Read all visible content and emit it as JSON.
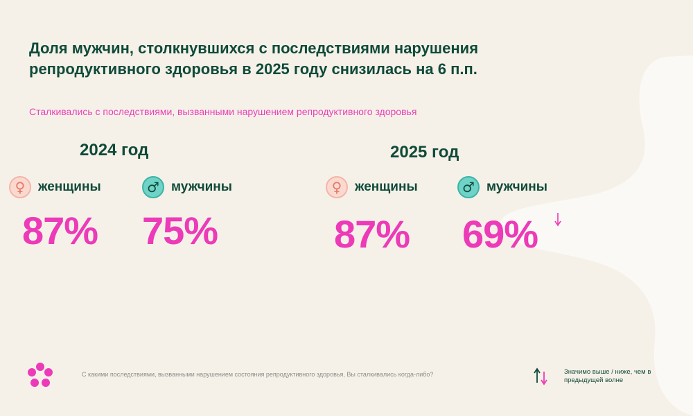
{
  "header": {
    "title_line1": "Доля мужчин, столкнувшихся с последствиями нарушения",
    "title_line2": "репродуктивного здоровья в 2025 году снизилась на 6 п.п.",
    "subtitle": "Сталкивались с последствиями, вызванными нарушением репродуктивного здоровья"
  },
  "groups": [
    {
      "year": "2024 год",
      "female": {
        "label": "женщины",
        "value": "87%"
      },
      "male": {
        "label": "мужчины",
        "value": "75%"
      }
    },
    {
      "year": "2025 год",
      "female": {
        "label": "женщины",
        "value": "87%"
      },
      "male": {
        "label": "мужчины",
        "value": "69%",
        "change": "down"
      }
    }
  ],
  "footer": {
    "question": "С какими последствиями, вызванными нарушением состояния репродуктивного здоровья, Вы сталкивались когда-либо?",
    "legend": "Значимо выше / ниже, чем в предыдущей волне"
  },
  "colors": {
    "accent": "#ec3ab8",
    "primary": "#0f4a3a",
    "background": "#f6f1e8",
    "female_icon": "#fbd9d0",
    "male_icon": "#6fd3c7",
    "up_arrow": "#0f4a3a",
    "down_arrow": "#ec3ab8"
  },
  "icons": {
    "female": "female-symbol-icon",
    "male": "male-symbol-icon",
    "down": "down-arrow-icon",
    "logo": "flower-logo-icon"
  },
  "chart_data": {
    "type": "table",
    "title": "Доля мужчин, столкнувшихся с последствиями нарушения репродуктивного здоровья в 2025 году снизилась на 6 п.п.",
    "subtitle": "Сталкивались с последствиями, вызванными нарушением репродуктивного здоровья",
    "categories": [
      "2024 год",
      "2025 год"
    ],
    "series": [
      {
        "name": "женщины",
        "values": [
          87,
          87
        ]
      },
      {
        "name": "мужчины",
        "values": [
          75,
          69
        ]
      }
    ],
    "unit": "%",
    "significance": {
      "мужчины 2025 год": "down"
    }
  }
}
